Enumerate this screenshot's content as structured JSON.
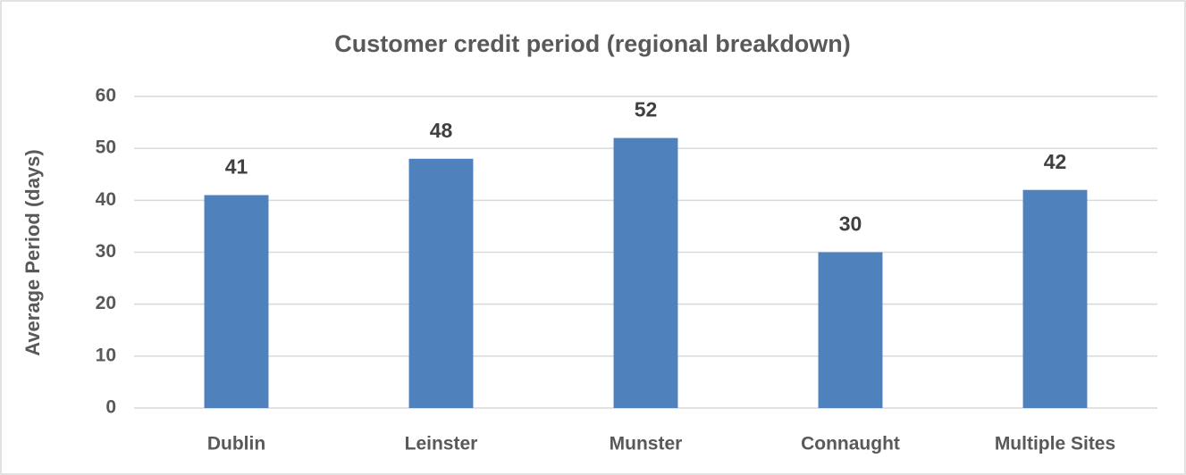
{
  "chart_data": {
    "type": "bar",
    "title": "Customer credit period (regional breakdown)",
    "y_label": "Average Period (days)",
    "categories": [
      "Dublin",
      "Leinster",
      "Munster",
      "Connaught",
      "Multiple Sites"
    ],
    "values": [
      41,
      48,
      52,
      30,
      42
    ],
    "color": "#4f81bd",
    "ylim": [
      0,
      60
    ],
    "yticks": [
      0,
      10,
      20,
      30,
      40,
      50,
      60
    ],
    "grid": true
  }
}
